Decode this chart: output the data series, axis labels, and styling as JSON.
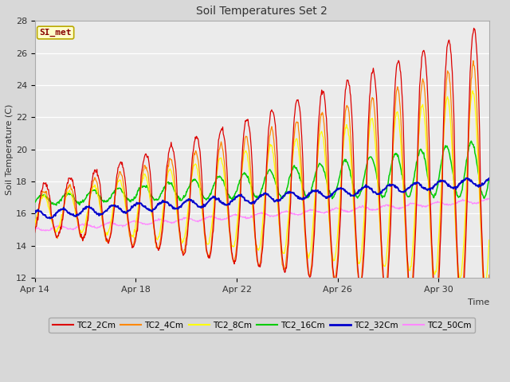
{
  "title": "Soil Temperatures Set 2",
  "xlabel": "Time",
  "ylabel": "Soil Temperature (C)",
  "ylim": [
    12,
    28
  ],
  "yticks": [
    12,
    14,
    16,
    18,
    20,
    22,
    24,
    26,
    28
  ],
  "background_color": "#d8d8d8",
  "plot_bg_color": "#ebebeb",
  "annotation_text": "SI_met",
  "annotation_bg": "#ffffcc",
  "annotation_border": "#bbaa00",
  "annotation_text_color": "#880000",
  "series_colors": {
    "TC2_2Cm": "#dd0000",
    "TC2_4Cm": "#ff8800",
    "TC2_8Cm": "#ffff00",
    "TC2_16Cm": "#00cc00",
    "TC2_32Cm": "#0000cc",
    "TC2_50Cm": "#ff88ff"
  },
  "xtick_labels": [
    "Apr 14",
    "Apr 18",
    "Apr 22",
    "Apr 26",
    "Apr 30"
  ],
  "xtick_positions": [
    0,
    4,
    8,
    12,
    16
  ],
  "num_days": 18,
  "points_per_day": 48
}
